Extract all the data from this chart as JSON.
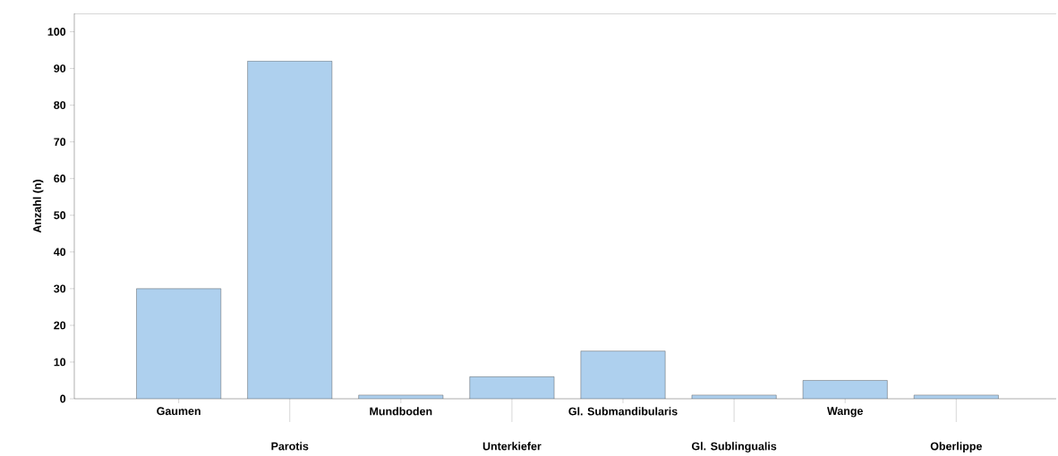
{
  "chart_data": {
    "type": "bar",
    "ylabel": "Anzahl (n)",
    "categories": [
      "Gaumen",
      "Parotis",
      "Mundboden",
      "Unterkiefer",
      "Gl. Submandibularis",
      "Gl. Sublingualis",
      "Wange",
      "Oberlippe"
    ],
    "values": [
      30,
      92,
      1,
      6,
      13,
      1,
      5,
      1
    ],
    "color": "#aed0ee",
    "ylim": [
      0,
      105
    ],
    "yticks": [
      0,
      10,
      20,
      30,
      40,
      50,
      60,
      70,
      80,
      90,
      100
    ],
    "grid": false
  }
}
